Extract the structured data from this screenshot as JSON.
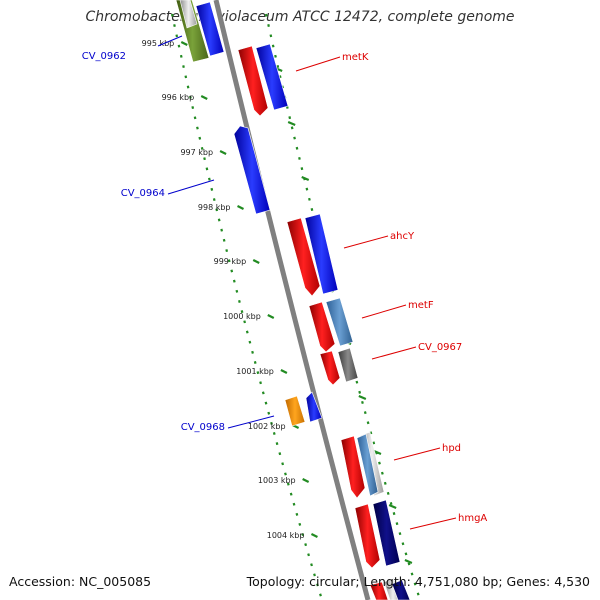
{
  "title": "Chromobacterium violaceum ATCC 12472, complete genome",
  "accession_text": "Accession: NC_005085",
  "stats_text": "Topology: circular; Length: 4,751,080 bp; Genes: 4,530",
  "ticks": [
    {
      "label": "995 kbp"
    },
    {
      "label": "996 kbp"
    },
    {
      "label": "997 kbp"
    },
    {
      "label": "998 kbp"
    },
    {
      "label": "999 kbp"
    },
    {
      "label": "1000 kbp"
    },
    {
      "label": "1001 kbp"
    },
    {
      "label": "1002 kbp"
    },
    {
      "label": "1003 kbp"
    },
    {
      "label": "1004 kbp"
    }
  ],
  "genes": [
    {
      "name": "CV_0962",
      "strand": "reverse",
      "color": "#1a2cff"
    },
    {
      "name": "metK",
      "strand": "forward",
      "color": "#ff1111"
    },
    {
      "name": "CV_0964",
      "strand": "reverse",
      "color": "#1a2cff"
    },
    {
      "name": "ahcY",
      "strand": "forward",
      "color": "#ff1111"
    },
    {
      "name": "metF",
      "strand": "forward",
      "color": "#ff1111"
    },
    {
      "name": "CV_0967",
      "strand": "forward",
      "color": "#ff1111"
    },
    {
      "name": "CV_0968",
      "strand": "reverse",
      "color": "#1a2cff"
    },
    {
      "name": "hpd",
      "strand": "forward",
      "color": "#ff1111"
    },
    {
      "name": "hmgA",
      "strand": "forward",
      "color": "#ff1111"
    }
  ],
  "colors": {
    "forward_label": "#dd0000",
    "reverse_label": "#0000cc",
    "tick_dots": "#228b22",
    "backbone": "#808080"
  }
}
